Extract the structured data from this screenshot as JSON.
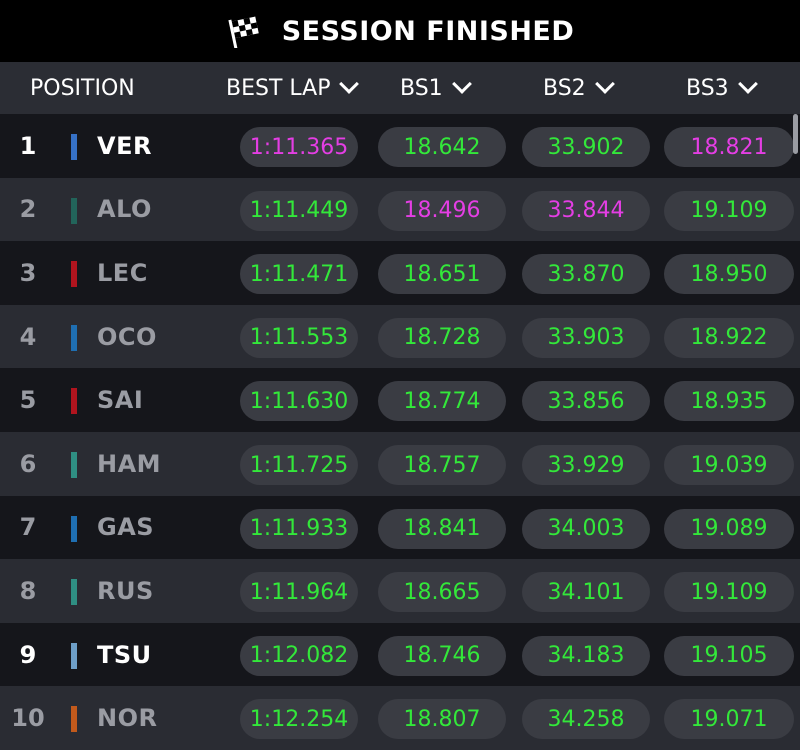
{
  "title": "SESSION FINISHED",
  "header": {
    "position": "POSITION",
    "best_lap": "BEST LAP",
    "bs1": "BS1",
    "bs2": "BS2",
    "bs3": "BS3"
  },
  "colors": {
    "personal_best": "#33e83a",
    "overall_best": "#e43ee4"
  },
  "rows": [
    {
      "pos": "1",
      "driver": "VER",
      "team_color": "#3671c6",
      "lap": "1:11.365",
      "lap_best": true,
      "bs1": "18.642",
      "bs1_best": false,
      "bs2": "33.902",
      "bs2_best": false,
      "bs3": "18.821",
      "bs3_best": true,
      "highlight": true
    },
    {
      "pos": "2",
      "driver": "ALO",
      "team_color": "#22645a",
      "lap": "1:11.449",
      "lap_best": false,
      "bs1": "18.496",
      "bs1_best": true,
      "bs2": "33.844",
      "bs2_best": true,
      "bs3": "19.109",
      "bs3_best": false,
      "highlight": false
    },
    {
      "pos": "3",
      "driver": "LEC",
      "team_color": "#b0141e",
      "lap": "1:11.471",
      "lap_best": false,
      "bs1": "18.651",
      "bs1_best": false,
      "bs2": "33.870",
      "bs2_best": false,
      "bs3": "18.950",
      "bs3_best": false,
      "highlight": false
    },
    {
      "pos": "4",
      "driver": "OCO",
      "team_color": "#1f6fb2",
      "lap": "1:11.553",
      "lap_best": false,
      "bs1": "18.728",
      "bs1_best": false,
      "bs2": "33.903",
      "bs2_best": false,
      "bs3": "18.922",
      "bs3_best": false,
      "highlight": false
    },
    {
      "pos": "5",
      "driver": "SAI",
      "team_color": "#b0141e",
      "lap": "1:11.630",
      "lap_best": false,
      "bs1": "18.774",
      "bs1_best": false,
      "bs2": "33.856",
      "bs2_best": false,
      "bs3": "18.935",
      "bs3_best": false,
      "highlight": false
    },
    {
      "pos": "6",
      "driver": "HAM",
      "team_color": "#2f8f83",
      "lap": "1:11.725",
      "lap_best": false,
      "bs1": "18.757",
      "bs1_best": false,
      "bs2": "33.929",
      "bs2_best": false,
      "bs3": "19.039",
      "bs3_best": false,
      "highlight": false
    },
    {
      "pos": "7",
      "driver": "GAS",
      "team_color": "#1f6fb2",
      "lap": "1:11.933",
      "lap_best": false,
      "bs1": "18.841",
      "bs1_best": false,
      "bs2": "34.003",
      "bs2_best": false,
      "bs3": "19.089",
      "bs3_best": false,
      "highlight": false
    },
    {
      "pos": "8",
      "driver": "RUS",
      "team_color": "#2f8f83",
      "lap": "1:11.964",
      "lap_best": false,
      "bs1": "18.665",
      "bs1_best": false,
      "bs2": "34.101",
      "bs2_best": false,
      "bs3": "19.109",
      "bs3_best": false,
      "highlight": false
    },
    {
      "pos": "9",
      "driver": "TSU",
      "team_color": "#6e9fc8",
      "lap": "1:12.082",
      "lap_best": false,
      "bs1": "18.746",
      "bs1_best": false,
      "bs2": "34.183",
      "bs2_best": false,
      "bs3": "19.105",
      "bs3_best": false,
      "highlight": true
    },
    {
      "pos": "10",
      "driver": "NOR",
      "team_color": "#c25a1c",
      "lap": "1:12.254",
      "lap_best": false,
      "bs1": "18.807",
      "bs1_best": false,
      "bs2": "34.258",
      "bs2_best": false,
      "bs3": "19.071",
      "bs3_best": false,
      "highlight": false
    }
  ]
}
